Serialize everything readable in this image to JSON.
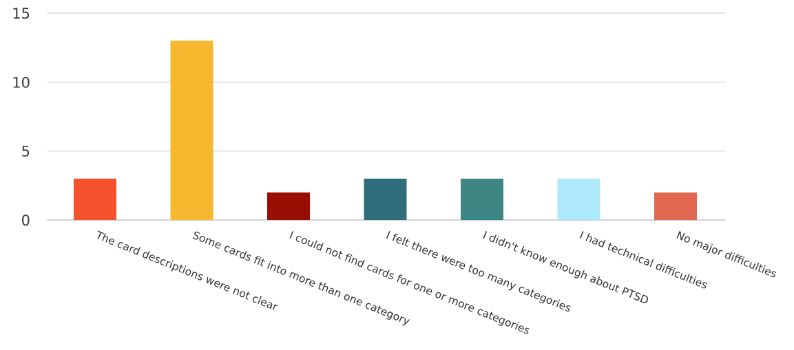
{
  "chart_data": {
    "type": "bar",
    "categories": [
      "The card descriptions were not clear",
      "Some cards fit into more than one category",
      "I could not find cards for one or more categories",
      "I felt there were too many categories",
      "I didn't know enough about PTSD",
      "I had technical difficulties",
      "No major difficulties"
    ],
    "values": [
      3,
      13,
      2,
      3,
      3,
      3,
      2
    ],
    "colors": [
      "#f4512c",
      "#f5b82e",
      "#980e00",
      "#316e7b",
      "#3e8683",
      "#aee8fb",
      "#e06850"
    ],
    "ylim": [
      0,
      15
    ],
    "yticks": [
      0,
      5,
      10,
      15
    ],
    "title": "",
    "xlabel": "",
    "ylabel": "",
    "grid": true,
    "legend": "none"
  }
}
